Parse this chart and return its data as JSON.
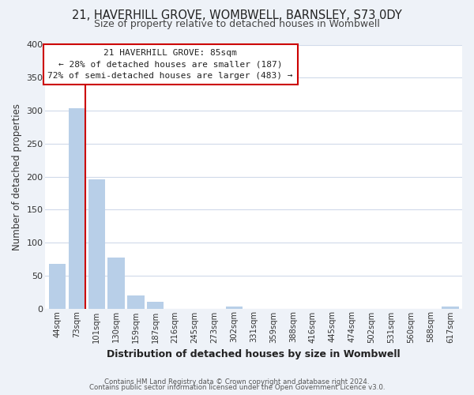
{
  "title1": "21, HAVERHILL GROVE, WOMBWELL, BARNSLEY, S73 0DY",
  "title2": "Size of property relative to detached houses in Wombwell",
  "xlabel": "Distribution of detached houses by size in Wombwell",
  "ylabel": "Number of detached properties",
  "bin_labels": [
    "44sqm",
    "73sqm",
    "101sqm",
    "130sqm",
    "159sqm",
    "187sqm",
    "216sqm",
    "245sqm",
    "273sqm",
    "302sqm",
    "331sqm",
    "359sqm",
    "388sqm",
    "416sqm",
    "445sqm",
    "474sqm",
    "502sqm",
    "531sqm",
    "560sqm",
    "588sqm",
    "617sqm"
  ],
  "bar_heights": [
    68,
    303,
    196,
    77,
    20,
    10,
    0,
    0,
    0,
    3,
    0,
    0,
    0,
    0,
    0,
    0,
    0,
    0,
    0,
    0,
    3
  ],
  "bar_color": "#b8cfe8",
  "vline_color": "#cc0000",
  "vline_bar_index": 1,
  "annotation_title": "21 HAVERHILL GROVE: 85sqm",
  "annotation_line1": "← 28% of detached houses are smaller (187)",
  "annotation_line2": "72% of semi-detached houses are larger (483) →",
  "annotation_box_color": "#ffffff",
  "annotation_box_edge": "#cc0000",
  "ylim": [
    0,
    400
  ],
  "yticks": [
    0,
    50,
    100,
    150,
    200,
    250,
    300,
    350,
    400
  ],
  "footer1": "Contains HM Land Registry data © Crown copyright and database right 2024.",
  "footer2": "Contains public sector information licensed under the Open Government Licence v3.0.",
  "bg_color": "#eef2f8",
  "plot_bg_color": "#ffffff",
  "grid_color": "#d0daea"
}
